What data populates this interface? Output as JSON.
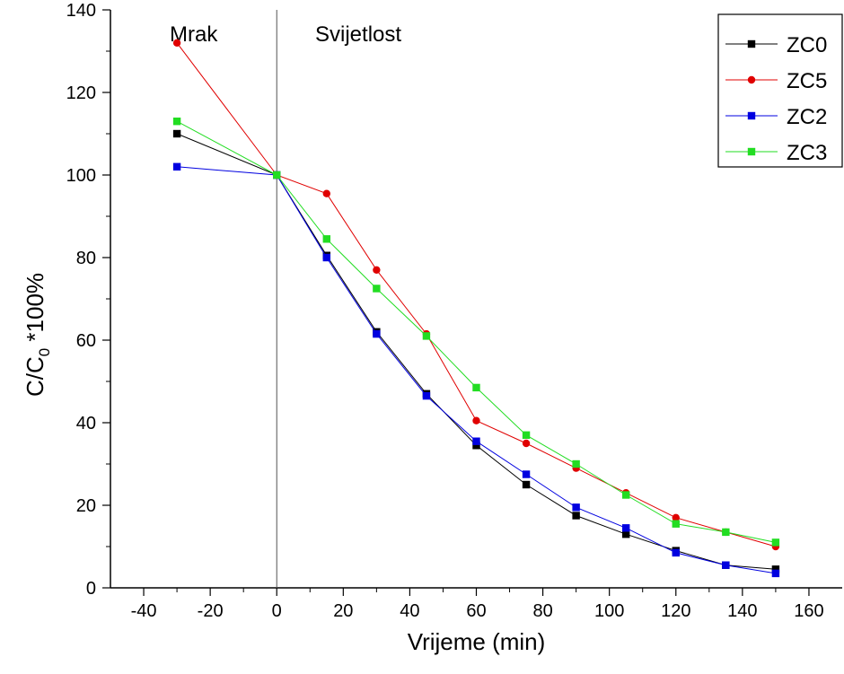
{
  "chart_data": {
    "type": "line",
    "xlabel": "Vrijeme (min)",
    "ylabel": {
      "main": "C/C",
      "subscript": "0",
      "suffix": " *100%"
    },
    "xlim": [
      -50,
      170
    ],
    "ylim": [
      0,
      140
    ],
    "x_ticks": [
      -40,
      -20,
      0,
      20,
      40,
      60,
      80,
      100,
      120,
      140,
      160
    ],
    "y_ticks": [
      0,
      20,
      40,
      60,
      80,
      100,
      120,
      140
    ],
    "grid": false,
    "legend_position": "top-right",
    "annotations": [
      {
        "text": "Mrak"
      },
      {
        "text": "Svijetlost"
      }
    ],
    "reference_line_x": 0,
    "x": [
      -30,
      0,
      15,
      30,
      45,
      60,
      75,
      90,
      105,
      120,
      135,
      150
    ],
    "series": [
      {
        "name": "ZC0",
        "color": "#000000",
        "marker": "square",
        "values": [
          110,
          100,
          80.5,
          62,
          47,
          34.5,
          25,
          17.5,
          13,
          9,
          5.5,
          4.5
        ]
      },
      {
        "name": "ZC5",
        "color": "#e00000",
        "marker": "circle",
        "values": [
          132,
          100,
          95.5,
          77,
          61.5,
          40.5,
          35,
          29,
          23,
          17,
          13.5,
          10
        ]
      },
      {
        "name": "ZC2",
        "color": "#0000e0",
        "marker": "square",
        "values": [
          102,
          100,
          80,
          61.5,
          46.5,
          35.5,
          27.5,
          19.5,
          14.5,
          8.5,
          5.5,
          3.5
        ]
      },
      {
        "name": "ZC3",
        "color": "#22dd22",
        "marker": "square",
        "values": [
          113,
          100,
          84.5,
          72.5,
          61,
          48.5,
          37,
          30,
          22.5,
          15.5,
          13.5,
          11
        ]
      }
    ]
  }
}
